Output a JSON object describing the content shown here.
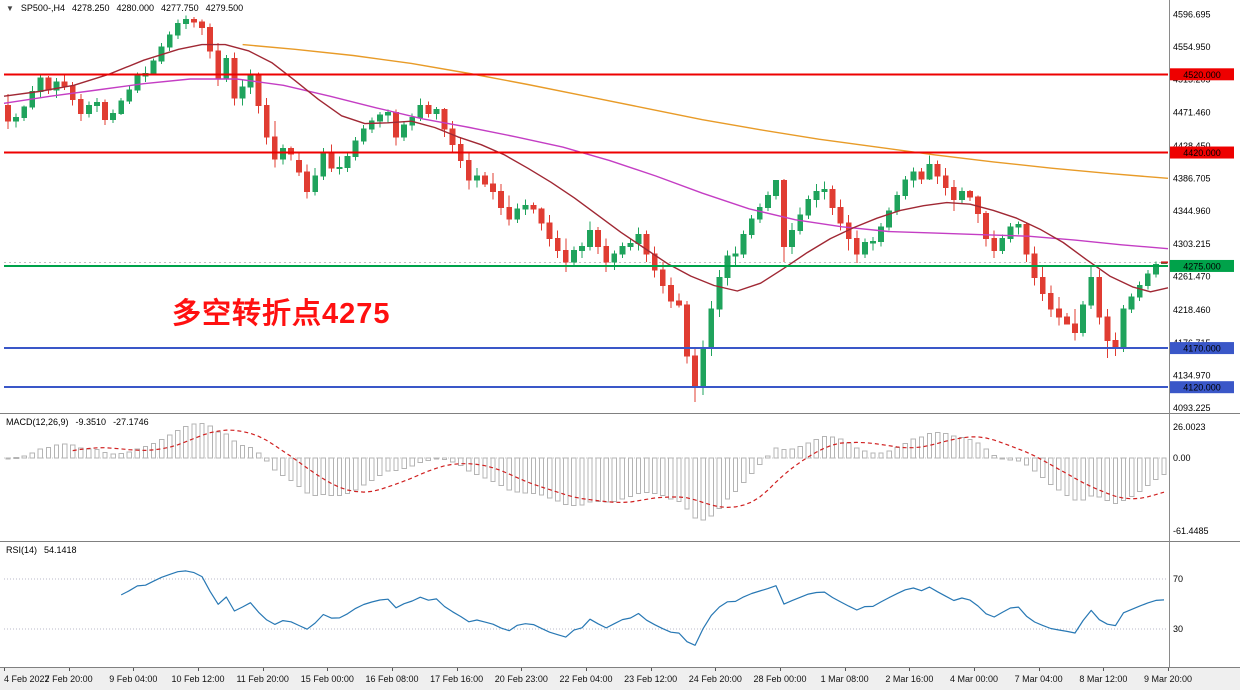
{
  "header": {
    "symbol": "SP500-,H4",
    "open": "4278.250",
    "high": "4280.000",
    "low": "4277.750",
    "close": "4279.500"
  },
  "annotation": {
    "text": "多空转折点4275",
    "color": "#ff1010"
  },
  "indicators": {
    "macd": {
      "name": "MACD(12,26,9)",
      "value_main": "-9.3510",
      "value_signal": "-27.1746"
    },
    "rsi": {
      "name": "RSI(14)",
      "value": "54.1418"
    }
  },
  "chart_data": {
    "type": "candlestick",
    "symbol": "SP500-",
    "timeframe": "H4",
    "ylim": [
      4087,
      4615
    ],
    "y_ticks": [
      4596.695,
      4554.95,
      4513.205,
      4471.46,
      4428.45,
      4386.705,
      4344.96,
      4303.215,
      4261.47,
      4218.46,
      4176.715,
      4134.97,
      4093.225
    ],
    "x_labels": [
      "4 Feb 2022",
      "7 Feb 20:00",
      "9 Feb 04:00",
      "10 Feb 12:00",
      "11 Feb 20:00",
      "15 Feb 00:00",
      "16 Feb 08:00",
      "17 Feb 16:00",
      "20 Feb 23:00",
      "22 Feb 04:00",
      "23 Feb 12:00",
      "24 Feb 20:00",
      "28 Feb 00:00",
      "1 Mar 08:00",
      "2 Mar 16:00",
      "4 Mar 00:00",
      "7 Mar 04:00",
      "8 Mar 12:00",
      "9 Mar 20:00"
    ],
    "levels": [
      {
        "value": 4520.0,
        "label": "4520.000",
        "color": "#ee0000"
      },
      {
        "value": 4420.0,
        "label": "4420.000",
        "color": "#ee0000"
      },
      {
        "value": 4275.0,
        "label": "4275.000",
        "color": "#00a24a"
      },
      {
        "value": 4170.0,
        "label": "4170.000",
        "color": "#3a57c8"
      },
      {
        "value": 4120.0,
        "label": "4120.000",
        "color": "#3a57c8"
      }
    ],
    "bid": {
      "value": 4279.5,
      "color": "#cc2020",
      "line_color": "#c0c0c0"
    },
    "candle_colors": {
      "up": "#1fa35c",
      "down": "#e03c32"
    },
    "candles": [
      [
        4480,
        4495,
        4450,
        4460
      ],
      [
        4460,
        4470,
        4452,
        4465
      ],
      [
        4465,
        4480,
        4460,
        4478
      ],
      [
        4478,
        4505,
        4475,
        4498
      ],
      [
        4498,
        4521,
        4490,
        4515
      ],
      [
        4515,
        4518,
        4495,
        4500
      ],
      [
        4500,
        4515,
        4490,
        4510
      ],
      [
        4510,
        4521,
        4500,
        4505
      ],
      [
        4505,
        4510,
        4480,
        4488
      ],
      [
        4488,
        4495,
        4460,
        4470
      ],
      [
        4470,
        4485,
        4465,
        4480
      ],
      [
        4480,
        4490,
        4472,
        4484
      ],
      [
        4484,
        4488,
        4455,
        4462
      ],
      [
        4462,
        4475,
        4458,
        4470
      ],
      [
        4470,
        4490,
        4468,
        4486
      ],
      [
        4486,
        4505,
        4482,
        4500
      ],
      [
        4500,
        4522,
        4496,
        4518
      ],
      [
        4518,
        4530,
        4510,
        4521
      ],
      [
        4521,
        4540,
        4520,
        4537
      ],
      [
        4537,
        4560,
        4533,
        4555
      ],
      [
        4555,
        4575,
        4550,
        4570
      ],
      [
        4570,
        4590,
        4565,
        4585
      ],
      [
        4585,
        4595,
        4578,
        4590
      ],
      [
        4590,
        4593,
        4580,
        4587
      ],
      [
        4587,
        4590,
        4570,
        4580
      ],
      [
        4580,
        4585,
        4540,
        4550
      ],
      [
        4550,
        4560,
        4505,
        4515
      ],
      [
        4515,
        4545,
        4510,
        4540
      ],
      [
        4540,
        4548,
        4480,
        4490
      ],
      [
        4490,
        4512,
        4480,
        4504
      ],
      [
        4504,
        4526,
        4495,
        4520
      ],
      [
        4520,
        4522,
        4470,
        4480
      ],
      [
        4480,
        4490,
        4430,
        4440
      ],
      [
        4440,
        4460,
        4401,
        4412
      ],
      [
        4412,
        4430,
        4405,
        4425
      ],
      [
        4425,
        4428,
        4410,
        4418
      ],
      [
        4410,
        4420,
        4390,
        4395
      ],
      [
        4395,
        4405,
        4361,
        4370
      ],
      [
        4370,
        4400,
        4365,
        4390
      ],
      [
        4390,
        4426,
        4385,
        4420
      ],
      [
        4420,
        4430,
        4395,
        4400
      ],
      [
        4400,
        4415,
        4392,
        4401
      ],
      [
        4401,
        4420,
        4395,
        4415
      ],
      [
        4415,
        4440,
        4410,
        4435
      ],
      [
        4435,
        4455,
        4430,
        4450
      ],
      [
        4450,
        4465,
        4445,
        4460
      ],
      [
        4460,
        4472,
        4452,
        4468
      ],
      [
        4468,
        4475,
        4458,
        4471
      ],
      [
        4471,
        4475,
        4429,
        4440
      ],
      [
        4440,
        4460,
        4435,
        4455
      ],
      [
        4455,
        4470,
        4448,
        4465
      ],
      [
        4465,
        4489,
        4460,
        4480
      ],
      [
        4480,
        4485,
        4465,
        4470
      ],
      [
        4470,
        4478,
        4462,
        4475
      ],
      [
        4475,
        4477,
        4440,
        4450
      ],
      [
        4450,
        4460,
        4420,
        4430
      ],
      [
        4430,
        4440,
        4400,
        4410
      ],
      [
        4410,
        4420,
        4373,
        4385
      ],
      [
        4385,
        4400,
        4375,
        4390
      ],
      [
        4390,
        4395,
        4376,
        4380
      ],
      [
        4380,
        4394,
        4360,
        4370
      ],
      [
        4370,
        4380,
        4340,
        4350
      ],
      [
        4350,
        4365,
        4327,
        4335
      ],
      [
        4335,
        4355,
        4330,
        4348
      ],
      [
        4348,
        4360,
        4340,
        4352
      ],
      [
        4352,
        4356,
        4342,
        4348
      ],
      [
        4348,
        4350,
        4320,
        4330
      ],
      [
        4330,
        4340,
        4300,
        4310
      ],
      [
        4310,
        4320,
        4285,
        4295
      ],
      [
        4295,
        4310,
        4267,
        4280
      ],
      [
        4280,
        4300,
        4275,
        4295
      ],
      [
        4295,
        4305,
        4285,
        4300
      ],
      [
        4300,
        4332,
        4295,
        4320
      ],
      [
        4320,
        4325,
        4290,
        4300
      ],
      [
        4300,
        4310,
        4267,
        4280
      ],
      [
        4280,
        4295,
        4270,
        4290
      ],
      [
        4290,
        4305,
        4285,
        4300
      ],
      [
        4300,
        4310,
        4295,
        4304
      ],
      [
        4304,
        4324,
        4295,
        4315
      ],
      [
        4315,
        4320,
        4280,
        4290
      ],
      [
        4290,
        4300,
        4260,
        4270
      ],
      [
        4270,
        4280,
        4240,
        4250
      ],
      [
        4250,
        4260,
        4221,
        4230
      ],
      [
        4230,
        4240,
        4222,
        4225
      ],
      [
        4225,
        4230,
        4150,
        4160
      ],
      [
        4160,
        4170,
        4101,
        4120
      ],
      [
        4120,
        4180,
        4110,
        4170
      ],
      [
        4170,
        4230,
        4160,
        4220
      ],
      [
        4220,
        4270,
        4210,
        4260
      ],
      [
        4260,
        4295,
        4250,
        4288
      ],
      [
        4288,
        4300,
        4275,
        4290
      ],
      [
        4290,
        4320,
        4285,
        4315
      ],
      [
        4315,
        4340,
        4310,
        4335
      ],
      [
        4335,
        4355,
        4330,
        4350
      ],
      [
        4350,
        4370,
        4345,
        4365
      ],
      [
        4365,
        4385,
        4360,
        4384
      ],
      [
        4384,
        4386,
        4280,
        4300
      ],
      [
        4300,
        4330,
        4290,
        4320
      ],
      [
        4320,
        4350,
        4315,
        4340
      ],
      [
        4340,
        4365,
        4335,
        4360
      ],
      [
        4360,
        4380,
        4350,
        4370
      ],
      [
        4370,
        4383,
        4360,
        4373
      ],
      [
        4373,
        4378,
        4340,
        4350
      ],
      [
        4350,
        4360,
        4320,
        4330
      ],
      [
        4330,
        4340,
        4295,
        4310
      ],
      [
        4310,
        4320,
        4279,
        4290
      ],
      [
        4290,
        4310,
        4285,
        4305
      ],
      [
        4305,
        4312,
        4295,
        4306
      ],
      [
        4306,
        4330,
        4300,
        4325
      ],
      [
        4325,
        4350,
        4320,
        4345
      ],
      [
        4345,
        4370,
        4340,
        4365
      ],
      [
        4365,
        4390,
        4360,
        4385
      ],
      [
        4385,
        4401,
        4375,
        4395
      ],
      [
        4395,
        4400,
        4380,
        4386
      ],
      [
        4386,
        4416,
        4385,
        4405
      ],
      [
        4405,
        4410,
        4380,
        4390
      ],
      [
        4390,
        4400,
        4365,
        4375
      ],
      [
        4375,
        4385,
        4345,
        4360
      ],
      [
        4360,
        4375,
        4355,
        4370
      ],
      [
        4370,
        4372,
        4358,
        4363
      ],
      [
        4363,
        4365,
        4330,
        4342
      ],
      [
        4342,
        4345,
        4300,
        4310
      ],
      [
        4310,
        4320,
        4285,
        4295
      ],
      [
        4295,
        4315,
        4290,
        4310
      ],
      [
        4310,
        4330,
        4305,
        4325
      ],
      [
        4325,
        4332,
        4315,
        4328
      ],
      [
        4328,
        4330,
        4280,
        4290
      ],
      [
        4290,
        4300,
        4250,
        4260
      ],
      [
        4260,
        4275,
        4230,
        4240
      ],
      [
        4240,
        4250,
        4210,
        4220
      ],
      [
        4220,
        4235,
        4199,
        4210
      ],
      [
        4210,
        4215,
        4200,
        4201
      ],
      [
        4201,
        4220,
        4180,
        4190
      ],
      [
        4190,
        4230,
        4185,
        4225
      ],
      [
        4225,
        4276,
        4220,
        4260
      ],
      [
        4260,
        4270,
        4200,
        4210
      ],
      [
        4210,
        4220,
        4157,
        4180
      ],
      [
        4180,
        4190,
        4160,
        4170
      ],
      [
        4170,
        4225,
        4165,
        4220
      ],
      [
        4220,
        4240,
        4215,
        4235
      ],
      [
        4235,
        4255,
        4230,
        4250
      ],
      [
        4250,
        4270,
        4245,
        4265
      ],
      [
        4265,
        4281,
        4260,
        4277
      ],
      [
        4278.25,
        4280,
        4277.75,
        4279.5
      ]
    ],
    "moving_averages": [
      {
        "name": "ma-slow-orange",
        "color": "#e89b28",
        "points": [
          [
            0.205,
            4558
          ],
          [
            0.25,
            4552
          ],
          [
            0.3,
            4544
          ],
          [
            0.35,
            4534
          ],
          [
            0.4,
            4521
          ],
          [
            0.45,
            4507
          ],
          [
            0.5,
            4492
          ],
          [
            0.55,
            4477
          ],
          [
            0.6,
            4462
          ],
          [
            0.65,
            4449
          ],
          [
            0.7,
            4437
          ],
          [
            0.75,
            4427
          ],
          [
            0.8,
            4417
          ],
          [
            0.85,
            4408
          ],
          [
            0.9,
            4400
          ],
          [
            0.95,
            4393
          ],
          [
            1,
            4387
          ]
        ]
      },
      {
        "name": "ma-medium-magenta",
        "color": "#c43ec4",
        "points": [
          [
            0,
            4483
          ],
          [
            0.04,
            4492
          ],
          [
            0.08,
            4500
          ],
          [
            0.12,
            4508
          ],
          [
            0.16,
            4514
          ],
          [
            0.2,
            4514
          ],
          [
            0.24,
            4506
          ],
          [
            0.28,
            4492
          ],
          [
            0.32,
            4477
          ],
          [
            0.36,
            4463
          ],
          [
            0.4,
            4452
          ],
          [
            0.44,
            4440
          ],
          [
            0.48,
            4427
          ],
          [
            0.52,
            4410
          ],
          [
            0.56,
            4390
          ],
          [
            0.6,
            4368
          ],
          [
            0.64,
            4348
          ],
          [
            0.68,
            4334
          ],
          [
            0.72,
            4325
          ],
          [
            0.76,
            4319
          ],
          [
            0.8,
            4317
          ],
          [
            0.84,
            4315
          ],
          [
            0.88,
            4313
          ],
          [
            0.92,
            4308
          ],
          [
            0.96,
            4302
          ],
          [
            1,
            4297
          ]
        ]
      },
      {
        "name": "ma-fast-darkred",
        "color": "#a02834",
        "points": [
          [
            0,
            4492
          ],
          [
            0.03,
            4498
          ],
          [
            0.06,
            4506
          ],
          [
            0.09,
            4520
          ],
          [
            0.12,
            4538
          ],
          [
            0.15,
            4552
          ],
          [
            0.17,
            4558
          ],
          [
            0.19,
            4558
          ],
          [
            0.21,
            4550
          ],
          [
            0.23,
            4535
          ],
          [
            0.25,
            4512
          ],
          [
            0.27,
            4488
          ],
          [
            0.29,
            4467
          ],
          [
            0.31,
            4457
          ],
          [
            0.33,
            4458
          ],
          [
            0.35,
            4460
          ],
          [
            0.37,
            4452
          ],
          [
            0.39,
            4440
          ],
          [
            0.41,
            4430
          ],
          [
            0.43,
            4417
          ],
          [
            0.45,
            4400
          ],
          [
            0.47,
            4382
          ],
          [
            0.49,
            4362
          ],
          [
            0.51,
            4340
          ],
          [
            0.53,
            4318
          ],
          [
            0.55,
            4298
          ],
          [
            0.57,
            4278
          ],
          [
            0.59,
            4262
          ],
          [
            0.61,
            4250
          ],
          [
            0.63,
            4243
          ],
          [
            0.65,
            4253
          ],
          [
            0.67,
            4272
          ],
          [
            0.69,
            4292
          ],
          [
            0.71,
            4310
          ],
          [
            0.73,
            4324
          ],
          [
            0.75,
            4336
          ],
          [
            0.77,
            4346
          ],
          [
            0.79,
            4352
          ],
          [
            0.81,
            4356
          ],
          [
            0.83,
            4354
          ],
          [
            0.85,
            4346
          ],
          [
            0.87,
            4336
          ],
          [
            0.89,
            4322
          ],
          [
            0.91,
            4305
          ],
          [
            0.93,
            4283
          ],
          [
            0.95,
            4262
          ],
          [
            0.97,
            4248
          ],
          [
            0.985,
            4242
          ],
          [
            1,
            4247
          ]
        ]
      }
    ],
    "macd": {
      "fast": 12,
      "slow": 26,
      "signal": 9,
      "ylim": [
        -70,
        38
      ],
      "ticks": [
        [
          26.0023,
          "26.0023"
        ],
        [
          0,
          "0.00"
        ],
        [
          -61.4485,
          "-61.4485"
        ]
      ],
      "histogram_color": "#b4b4b4",
      "signal_color": "#d02020"
    },
    "rsi": {
      "period": 14,
      "ylim": [
        0,
        100
      ],
      "levels": [
        70,
        30
      ],
      "ticks": [
        [
          70,
          "70"
        ],
        [
          30,
          "30"
        ]
      ],
      "color": "#2878b4"
    }
  }
}
